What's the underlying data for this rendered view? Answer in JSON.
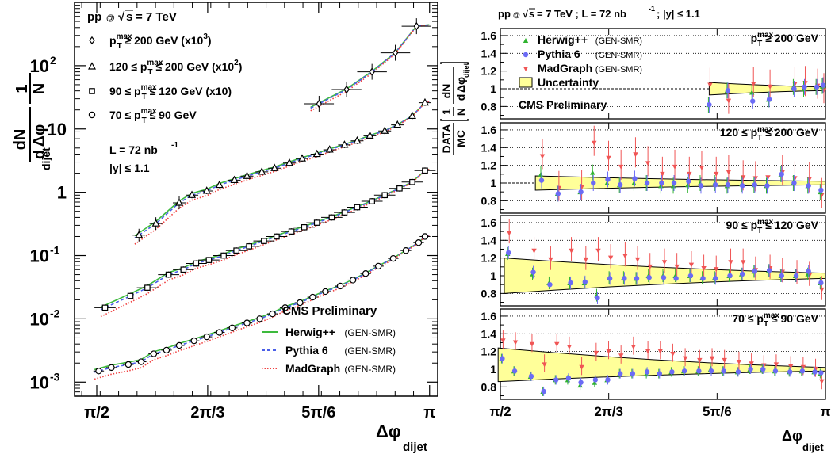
{
  "chart_data": [
    {
      "type": "scatter",
      "ylabel": "1/N dN/dΔφ_dijet",
      "y_axis_label_parts": {
        "numerator": "1",
        "fraction_top": "dN",
        "prefix": "N",
        "d": "d",
        "phi": "Δφ",
        "subscript": "dijet"
      },
      "xlabel": "Δφ_dijet",
      "x_axis_label_parts": {
        "symbol": "Δφ",
        "subscript": "dijet"
      },
      "x_scale": "linear",
      "y_scale": "log",
      "xlim": [
        1.466,
        3.18
      ],
      "ylim": [
        0.0006,
        1000
      ],
      "x_ticks": [
        {
          "value": 1.5708,
          "label": "π/2"
        },
        {
          "value": 2.0944,
          "label": "2π/3"
        },
        {
          "value": 2.618,
          "label": "5π/6"
        },
        {
          "value": 3.1416,
          "label": "π"
        }
      ],
      "y_ticks": [
        {
          "value": 0.001,
          "base": "10",
          "exp": "-3"
        },
        {
          "value": 0.01,
          "base": "10",
          "exp": "-2"
        },
        {
          "value": 0.1,
          "base": "10",
          "exp": "-1"
        },
        {
          "value": 1,
          "base": "1",
          "exp": ""
        },
        {
          "value": 10,
          "base": "10",
          "exp": ""
        },
        {
          "value": 100,
          "base": "10",
          "exp": "2"
        }
      ],
      "header": {
        "pre": "pp",
        "at": "@",
        "sqrt": "√",
        "s": "s",
        "post": "= 7 TeV"
      },
      "lumi": {
        "pre": "L = 72 nb",
        "sup": "-1"
      },
      "rapidity": "|y| ≤ 1.1",
      "experiment": "CMS Preliminary",
      "legend_lines": [
        {
          "name": "Herwig++",
          "tag": "(GEN-SMR)",
          "color": "#3dba3d",
          "style": "solid"
        },
        {
          "name": "Pythia 6",
          "tag": "(GEN-SMR)",
          "color": "#4a5fe8",
          "style": "dashed"
        },
        {
          "name": "MadGraph",
          "tag": "(GEN-SMR)",
          "color": "#f04040",
          "style": "dotted"
        }
      ],
      "series": [
        {
          "marker": "diamond",
          "legend": {
            "pre": "p",
            "sup": "max",
            "sub": "T",
            "post": " ≥ 200 GeV (x10",
            "pow": "3",
            "end": ")"
          },
          "x": [
            2.62,
            2.75,
            2.87,
            2.98,
            3.08
          ],
          "y": [
            25,
            42,
            80,
            160,
            420
          ],
          "xerr": 0.07,
          "band": [
            2.58,
            3.14
          ]
        },
        {
          "marker": "triangle",
          "legend": {
            "pre": "120 ≤ p",
            "sup": "max",
            "sub": "T",
            "post": " ≤ 200 GeV (x10",
            "pow": "2",
            "end": ")"
          },
          "x": [
            1.77,
            1.85,
            1.96,
            2.02,
            2.09,
            2.15,
            2.22,
            2.28,
            2.35,
            2.41,
            2.48,
            2.54,
            2.61,
            2.67,
            2.74,
            2.8,
            2.86,
            2.93,
            2.99,
            3.06,
            3.12
          ],
          "y": [
            0.21,
            0.32,
            0.68,
            0.9,
            1.05,
            1.3,
            1.55,
            1.8,
            2.1,
            2.4,
            2.9,
            3.4,
            4.0,
            4.7,
            5.6,
            6.5,
            7.8,
            9.3,
            11.6,
            16,
            26
          ],
          "xerr": 0.03,
          "band": [
            1.75,
            3.14
          ]
        },
        {
          "marker": "square",
          "legend": {
            "pre": "90 ≤ p",
            "sup": "max",
            "sub": "T",
            "post": " ≤ 120 GeV (x10)",
            "pow": "",
            "end": ""
          },
          "x": [
            1.61,
            1.73,
            1.81,
            1.91,
            1.98,
            2.04,
            2.1,
            2.17,
            2.23,
            2.29,
            2.36,
            2.42,
            2.49,
            2.55,
            2.61,
            2.68,
            2.74,
            2.8,
            2.87,
            2.93,
            3.0,
            3.06,
            3.12
          ],
          "y": [
            0.015,
            0.023,
            0.031,
            0.05,
            0.06,
            0.075,
            0.085,
            0.1,
            0.12,
            0.14,
            0.17,
            0.2,
            0.24,
            0.28,
            0.33,
            0.4,
            0.48,
            0.58,
            0.72,
            0.9,
            1.15,
            1.45,
            2.2
          ],
          "xerr": 0.05,
          "band": [
            1.59,
            3.14
          ]
        },
        {
          "marker": "circle",
          "legend": {
            "pre": "70 ≤ p",
            "sup": "max",
            "sub": "T",
            "post": " ≤ 90 GeV",
            "pow": "",
            "end": ""
          },
          "x": [
            1.58,
            1.64,
            1.72,
            1.78,
            1.84,
            1.9,
            1.96,
            2.03,
            2.09,
            2.15,
            2.21,
            2.28,
            2.34,
            2.4,
            2.46,
            2.53,
            2.59,
            2.65,
            2.72,
            2.78,
            2.84,
            2.9,
            2.97,
            3.03,
            3.09,
            3.12
          ],
          "y": [
            0.0015,
            0.0017,
            0.0019,
            0.0021,
            0.0028,
            0.0032,
            0.0038,
            0.0045,
            0.0052,
            0.0061,
            0.0072,
            0.0086,
            0.01,
            0.012,
            0.015,
            0.018,
            0.022,
            0.027,
            0.033,
            0.041,
            0.052,
            0.068,
            0.09,
            0.12,
            0.16,
            0.2
          ],
          "xerr": 0.025,
          "band": [
            1.56,
            3.14
          ]
        }
      ]
    },
    {
      "type": "scatter",
      "ylabel": "DATA/MC [1/N dN/dΔφ_dijet]",
      "ylabel_parts": {
        "frac_top": "DATA",
        "frac_bot": "MC",
        "one": "1",
        "dn": "dN",
        "n": "N",
        "d": "d",
        "phi": "Δφ",
        "sub": "dijet"
      },
      "xlabel": "Δφ_dijet",
      "x_axis_label_parts": {
        "symbol": "Δφ",
        "subscript": "dijet"
      },
      "xlim": [
        1.5708,
        3.1416
      ],
      "ylim": [
        0.66,
        1.68
      ],
      "y_ticks": [
        0.8,
        1,
        1.2,
        1.4,
        1.6
      ],
      "y_tick_labels": [
        "0.8",
        "1",
        "1.2",
        "1.4",
        "1.6"
      ],
      "x_ticks": [
        {
          "value": 1.5708,
          "label": "π/2"
        },
        {
          "value": 2.0944,
          "label": "2π/3"
        },
        {
          "value": 2.618,
          "label": "5π/6"
        },
        {
          "value": 3.1416,
          "label": "π"
        }
      ],
      "grid": "horizontal dotted",
      "header": {
        "pre": "pp",
        "at": "@",
        "sqrt": "√",
        "s": "s",
        "post": "= 7 TeV ; L = 72 nb",
        "sup": "-1",
        "end": " ; |y| ≤ 1.1"
      },
      "experiment": "CMS Preliminary",
      "legend": [
        {
          "name": "Herwig++",
          "tag": "(GEN-SMR)",
          "color": "#2fb32f",
          "marker": "triangle-up"
        },
        {
          "name": "Pythia 6",
          "tag": "(GEN-SMR)",
          "color": "#6b6bf5",
          "marker": "circle"
        },
        {
          "name": "MadGraph",
          "tag": "(GEN-SMR)",
          "color": "#f05555",
          "marker": "triangle-down"
        },
        {
          "name": "Uncertainty",
          "tag": "",
          "color": "#ffff99",
          "marker": "box"
        }
      ],
      "panels": [
        {
          "label": {
            "pre": "p",
            "sup": "max",
            "sub": "T",
            "post": " ≥ 200 GeV"
          },
          "x": [
            2.58,
            2.67,
            2.79,
            2.87,
            2.99,
            3.04,
            3.1,
            3.13
          ],
          "herwig": [
            0.82,
            0.98,
            0.96,
            0.88,
            1.02,
            1.0,
            1.02,
            1.03
          ],
          "pythia": [
            0.82,
            0.98,
            0.86,
            0.88,
            1.0,
            1.02,
            1.02,
            1.04
          ],
          "madgraph": [
            1.04,
            0.86,
            1.05,
            1.02,
            1.05,
            1.06,
            1.03,
            0.98
          ],
          "band": {
            "x": [
              2.58,
              3.14
            ],
            "lo": [
              0.93,
              0.98
            ],
            "hi": [
              1.07,
              1.02
            ]
          }
        },
        {
          "label": {
            "pre": "120 ≤ p",
            "sup": "max",
            "sub": "T",
            "post": " ≤ 200 GeV"
          },
          "x": [
            1.77,
            1.85,
            1.96,
            2.02,
            2.09,
            2.15,
            2.22,
            2.28,
            2.35,
            2.41,
            2.48,
            2.54,
            2.61,
            2.67,
            2.74,
            2.8,
            2.86,
            2.93,
            2.99,
            3.06,
            3.12
          ],
          "herwig": [
            1.1,
            0.88,
            0.9,
            1.12,
            1.0,
            0.98,
            1.0,
            1.0,
            0.97,
            0.97,
            0.98,
            1.0,
            1.0,
            0.97,
            0.99,
            0.98,
            0.97,
            1.1,
            1.0,
            0.97,
            0.9
          ],
          "pythia": [
            1.03,
            0.88,
            0.9,
            1.0,
            1.04,
            0.98,
            1.05,
            1.0,
            1.0,
            1.0,
            1.02,
            0.97,
            0.98,
            0.98,
            0.97,
            0.98,
            0.97,
            1.1,
            1.0,
            0.97,
            0.92
          ],
          "madgraph": [
            1.3,
            0.94,
            0.95,
            1.45,
            1.28,
            1.18,
            1.32,
            1.22,
            1.1,
            1.18,
            1.1,
            1.17,
            1.1,
            1.12,
            1.06,
            1.05,
            1.06,
            1.12,
            1.05,
            1.04,
            0.86
          ],
          "band": {
            "x": [
              1.74,
              3.14
            ],
            "lo": [
              0.92,
              0.98
            ],
            "hi": [
              1.08,
              1.02
            ]
          }
        },
        {
          "label": {
            "pre": "90 ≤ p",
            "sup": "max",
            "sub": "T",
            "post": " ≤ 120 GeV"
          },
          "x": [
            1.61,
            1.73,
            1.81,
            1.91,
            1.98,
            2.04,
            2.1,
            2.17,
            2.23,
            2.29,
            2.36,
            2.42,
            2.49,
            2.55,
            2.61,
            2.68,
            2.74,
            2.8,
            2.87,
            2.93,
            3.0,
            3.06,
            3.12
          ],
          "herwig": [
            1.25,
            1.02,
            0.92,
            0.92,
            0.92,
            0.78,
            0.98,
            0.98,
            0.97,
            1.0,
            1.0,
            1.0,
            1.0,
            0.98,
            0.98,
            1.0,
            1.02,
            1.05,
            1.06,
            1.0,
            1.0,
            1.02,
            0.92
          ],
          "pythia": [
            1.26,
            1.04,
            0.9,
            0.92,
            0.93,
            0.75,
            0.97,
            0.97,
            0.97,
            0.98,
            0.98,
            0.97,
            1.0,
            0.97,
            0.97,
            1.0,
            1.02,
            1.05,
            1.06,
            1.0,
            1.0,
            1.05,
            0.92
          ],
          "madgraph": [
            1.48,
            1.28,
            1.18,
            1.28,
            1.18,
            1.28,
            1.2,
            1.22,
            1.18,
            1.1,
            1.15,
            1.1,
            1.12,
            1.08,
            1.07,
            1.15,
            1.15,
            1.06,
            1.08,
            1.04,
            1.02,
            1.0,
            0.84
          ],
          "band": {
            "x": [
              1.59,
              3.14
            ],
            "lo": [
              0.8,
              0.97
            ],
            "hi": [
              1.2,
              1.03
            ]
          }
        },
        {
          "label": {
            "pre": "70 ≤ p",
            "sup": "max",
            "sub": "T",
            "post": " ≤ 90 GeV"
          },
          "x": [
            1.58,
            1.64,
            1.72,
            1.78,
            1.84,
            1.9,
            1.96,
            2.03,
            2.09,
            2.15,
            2.21,
            2.28,
            2.34,
            2.4,
            2.46,
            2.53,
            2.59,
            2.65,
            2.72,
            2.78,
            2.84,
            2.9,
            2.97,
            3.03,
            3.09,
            3.12
          ],
          "herwig": [
            1.12,
            0.98,
            0.92,
            0.75,
            0.88,
            0.88,
            0.82,
            0.85,
            0.88,
            0.95,
            0.95,
            0.95,
            0.95,
            0.97,
            0.98,
            0.98,
            1.0,
            0.98,
            0.97,
            1.0,
            1.0,
            0.98,
            0.97,
            0.98,
            0.97,
            0.95
          ],
          "pythia": [
            1.12,
            0.98,
            0.92,
            0.75,
            0.88,
            0.9,
            0.85,
            0.88,
            0.88,
            0.95,
            0.95,
            0.97,
            0.95,
            0.97,
            0.98,
            0.98,
            0.98,
            0.98,
            0.97,
            1.0,
            1.0,
            0.98,
            0.97,
            0.98,
            0.97,
            0.96
          ],
          "madgraph": [
            1.32,
            1.3,
            1.28,
            1.05,
            1.28,
            1.25,
            1.02,
            1.18,
            1.2,
            1.15,
            1.25,
            1.2,
            1.2,
            1.17,
            1.12,
            1.1,
            1.12,
            1.1,
            1.08,
            1.06,
            1.04,
            1.05,
            1.03,
            1.02,
            1.0,
            0.86
          ],
          "band": {
            "x": [
              1.56,
              3.14
            ],
            "lo": [
              0.86,
              0.98
            ],
            "hi": [
              1.24,
              1.02
            ]
          }
        }
      ]
    }
  ]
}
